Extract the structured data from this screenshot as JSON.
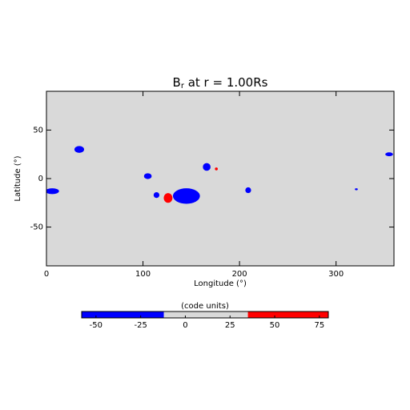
{
  "chart_data": {
    "type": "map",
    "title": "B",
    "title_subscript": "r",
    "title_rest": " at r = 1.00Rs",
    "x_label": "Longitude (°)",
    "y_label": "Latitude (°)",
    "xlim": [
      0,
      360
    ],
    "ylim": [
      -90,
      90
    ],
    "xticks": [
      0,
      100,
      200,
      300
    ],
    "yticks": [
      -50,
      0,
      50
    ],
    "background": "#d9d9d9",
    "regions": [
      {
        "x": 34,
        "y": 30,
        "rx": 5,
        "ry": 3.5,
        "color": "#0000ff"
      },
      {
        "x": 6,
        "y": -13,
        "rx": 7,
        "ry": 3,
        "color": "#0000ff"
      },
      {
        "x": 105,
        "y": 2.5,
        "rx": 4,
        "ry": 3,
        "color": "#0000ff"
      },
      {
        "x": 114,
        "y": -17,
        "rx": 3,
        "ry": 3,
        "color": "#0000ff"
      },
      {
        "x": 126,
        "y": -20,
        "rx": 4.5,
        "ry": 5,
        "color": "#ff0000"
      },
      {
        "x": 145,
        "y": -18,
        "rx": 14,
        "ry": 8,
        "color": "#0000ff"
      },
      {
        "x": 166,
        "y": 12,
        "rx": 4,
        "ry": 4,
        "color": "#0000ff"
      },
      {
        "x": 176,
        "y": 10,
        "rx": 1.5,
        "ry": 1.5,
        "color": "#ff0000"
      },
      {
        "x": 209,
        "y": -12,
        "rx": 3,
        "ry": 3,
        "color": "#0000ff"
      },
      {
        "x": 321,
        "y": -11,
        "rx": 1.5,
        "ry": 1,
        "color": "#0000ff"
      },
      {
        "x": 355,
        "y": 25,
        "rx": 4,
        "ry": 2,
        "color": "#0000ff"
      }
    ],
    "colorbar": {
      "label": "(code units)",
      "lim": [
        -58,
        80
      ],
      "ticks": [
        -50,
        -25,
        0,
        25,
        50,
        75
      ],
      "segments": [
        {
          "from": -58,
          "to": -12,
          "color": "#0000ff"
        },
        {
          "from": -12,
          "to": 35,
          "color": "#d9d9d9"
        },
        {
          "from": 35,
          "to": 80,
          "color": "#ff0000"
        }
      ]
    }
  }
}
